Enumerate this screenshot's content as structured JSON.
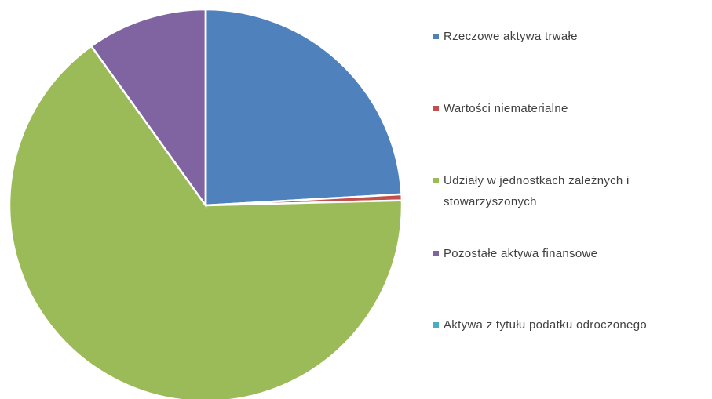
{
  "chart_data": {
    "type": "pie",
    "categories": [
      "Rzeczowe aktywa trwałe",
      "Wartości niematerialne",
      "Udziały w jednostkach zależnych i stowarzyszonych",
      "Pozostałe aktywa finansowe",
      "Aktywa z tytułu podatku odroczonego"
    ],
    "values": [
      24.1,
      0.5,
      65.5,
      9.9,
      0
    ],
    "colors": [
      "#4f81bd",
      "#c0504d",
      "#9bbb59",
      "#8064a2",
      "#4bacc6"
    ],
    "legend": "right"
  }
}
